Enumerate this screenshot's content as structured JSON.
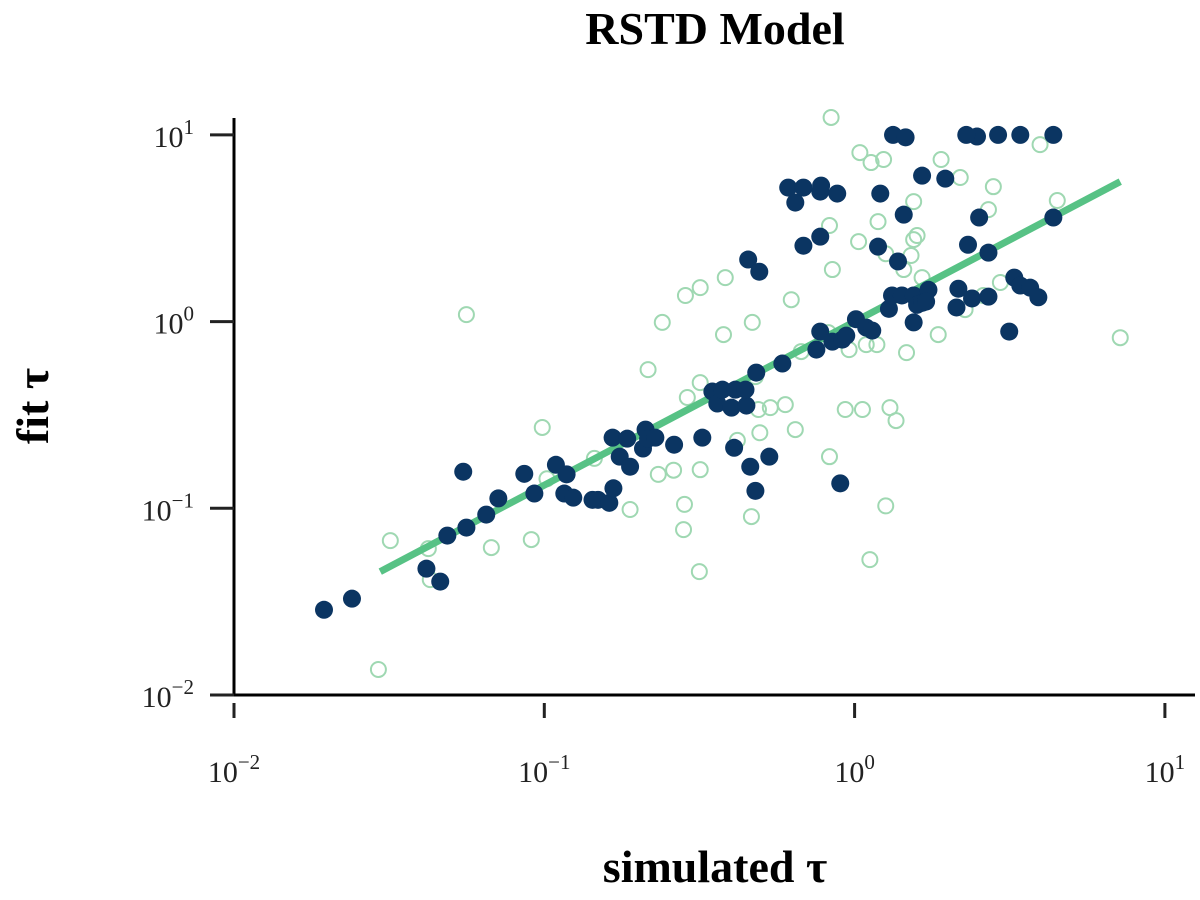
{
  "chart_data": {
    "type": "scatter",
    "title": "RSTD Model",
    "xlabel": "simulated τ",
    "ylabel": "fit τ",
    "xscale": "log",
    "yscale": "log",
    "xlim": [
      0.01,
      12
    ],
    "ylim": [
      0.01,
      12
    ],
    "grid": false,
    "colors": {
      "filled": "#0b3562",
      "open": "#9fd8b2",
      "fit_line": "#57c285",
      "axis": "#222222"
    },
    "x_ticks": [
      {
        "base": "10",
        "exp": "−2",
        "value": 0.01
      },
      {
        "base": "10",
        "exp": "−1",
        "value": 0.1
      },
      {
        "base": "10",
        "exp": "0",
        "value": 1
      },
      {
        "base": "10",
        "exp": "1",
        "value": 10
      }
    ],
    "y_ticks": [
      {
        "base": "10",
        "exp": "−2",
        "value": 0.01
      },
      {
        "base": "10",
        "exp": "−1",
        "value": 0.1
      },
      {
        "base": "10",
        "exp": "0",
        "value": 1
      },
      {
        "base": "10",
        "exp": "1",
        "value": 10
      }
    ],
    "fit_line": {
      "x": [
        0.0296,
        7.18
      ],
      "y": [
        0.0458,
        5.62
      ]
    },
    "series": [
      {
        "marker": "open-circle",
        "points": [
          [
            0.0292,
            0.0137
          ],
          [
            0.0319,
            0.0671
          ],
          [
            0.0423,
            0.0608
          ],
          [
            0.0429,
            0.0415
          ],
          [
            0.0561,
            1.09
          ],
          [
            0.0675,
            0.0616
          ],
          [
            0.0908,
            0.068
          ],
          [
            0.0985,
            0.271
          ],
          [
            0.102,
            0.144
          ],
          [
            0.145,
            0.185
          ],
          [
            0.189,
            0.0985
          ],
          [
            0.216,
            0.553
          ],
          [
            0.233,
            0.152
          ],
          [
            0.24,
            0.99
          ],
          [
            0.261,
            0.16
          ],
          [
            0.281,
            0.0769
          ],
          [
            0.285,
            1.38
          ],
          [
            0.283,
            0.105
          ],
          [
            0.289,
            0.392
          ],
          [
            0.316,
            0.0458
          ],
          [
            0.318,
            1.52
          ],
          [
            0.318,
            0.161
          ],
          [
            0.318,
            0.471
          ],
          [
            0.378,
            0.852
          ],
          [
            0.383,
            1.72
          ],
          [
            0.419,
            0.231
          ],
          [
            0.465,
            0.0903
          ],
          [
            0.468,
            0.99
          ],
          [
            0.479,
            0.507
          ],
          [
            0.49,
            0.338
          ],
          [
            0.535,
            0.346
          ],
          [
            0.495,
            0.254
          ],
          [
            0.598,
            0.359
          ],
          [
            0.625,
            1.31
          ],
          [
            0.644,
            0.264
          ],
          [
            0.673,
            0.691
          ],
          [
            0.823,
            0.873
          ],
          [
            0.83,
            0.189
          ],
          [
            0.848,
            1.9
          ],
          [
            0.83,
            3.27
          ],
          [
            0.84,
            12.4
          ],
          [
            0.933,
            0.338
          ],
          [
            0.96,
            0.708
          ],
          [
            1.03,
            2.68
          ],
          [
            1.04,
            8.04
          ],
          [
            1.09,
            0.753
          ],
          [
            1.13,
            7.11
          ],
          [
            1.12,
            0.0531
          ],
          [
            1.18,
            0.753
          ],
          [
            1.19,
            3.43
          ],
          [
            1.06,
            0.338
          ],
          [
            1.24,
            7.38
          ],
          [
            1.26,
            0.103
          ],
          [
            1.3,
            0.346
          ],
          [
            1.36,
            0.295
          ],
          [
            1.44,
            1.9
          ],
          [
            1.47,
            0.682
          ],
          [
            1.52,
            2.26
          ],
          [
            1.55,
            2.75
          ],
          [
            1.55,
            4.39
          ],
          [
            1.59,
            2.89
          ],
          [
            1.65,
            1.72
          ],
          [
            1.86,
            0.852
          ],
          [
            1.9,
            7.38
          ],
          [
            2.19,
            5.91
          ],
          [
            2.27,
            1.16
          ],
          [
            2.6,
            1.38
          ],
          [
            2.7,
            3.98
          ],
          [
            2.8,
            5.28
          ],
          [
            3.96,
            8.87
          ],
          [
            4.5,
            4.45
          ],
          [
            7.18,
            0.82
          ],
          [
            1.26,
            2.31
          ],
          [
            2.95,
            1.62
          ]
        ]
      },
      {
        "marker": "filled-circle",
        "points": [
          [
            0.0195,
            0.0286
          ],
          [
            0.024,
            0.0328
          ],
          [
            0.0417,
            0.0475
          ],
          [
            0.0462,
            0.0405
          ],
          [
            0.0487,
            0.0714
          ],
          [
            0.0548,
            0.157
          ],
          [
            0.0561,
            0.0788
          ],
          [
            0.065,
            0.0925
          ],
          [
            0.0711,
            0.113
          ],
          [
            0.0862,
            0.153
          ],
          [
            0.0929,
            0.12
          ],
          [
            0.109,
            0.171
          ],
          [
            0.118,
            0.152
          ],
          [
            0.116,
            0.12
          ],
          [
            0.124,
            0.114
          ],
          [
            0.143,
            0.111
          ],
          [
            0.149,
            0.111
          ],
          [
            0.162,
            0.107
          ],
          [
            0.167,
            0.128
          ],
          [
            0.166,
            0.239
          ],
          [
            0.175,
            0.189
          ],
          [
            0.185,
            0.236
          ],
          [
            0.189,
            0.167
          ],
          [
            0.212,
            0.264
          ],
          [
            0.208,
            0.209
          ],
          [
            0.216,
            0.236
          ],
          [
            0.228,
            0.239
          ],
          [
            0.262,
            0.219
          ],
          [
            0.323,
            0.239
          ],
          [
            0.348,
            0.422
          ],
          [
            0.361,
            0.364
          ],
          [
            0.375,
            0.432
          ],
          [
            0.401,
            0.346
          ],
          [
            0.413,
            0.432
          ],
          [
            0.448,
            0.355
          ],
          [
            0.445,
            0.432
          ],
          [
            0.409,
            0.211
          ],
          [
            0.461,
            0.167
          ],
          [
            0.454,
            2.15
          ],
          [
            0.493,
            1.85
          ],
          [
            0.479,
            0.124
          ],
          [
            0.531,
            0.189
          ],
          [
            0.482,
            0.533
          ],
          [
            0.585,
            0.596
          ],
          [
            0.753,
            0.708
          ],
          [
            0.775,
            0.884
          ],
          [
            0.848,
            0.781
          ],
          [
            0.913,
            0.801
          ],
          [
            0.94,
            0.841
          ],
          [
            1.01,
            1.03
          ],
          [
            1.09,
            0.929
          ],
          [
            1.14,
            0.895
          ],
          [
            1.19,
            2.52
          ],
          [
            1.21,
            4.85
          ],
          [
            1.38,
            2.1
          ],
          [
            1.29,
            1.17
          ],
          [
            1.32,
            1.38
          ],
          [
            1.42,
            1.38
          ],
          [
            1.44,
            3.74
          ],
          [
            1.55,
            1.38
          ],
          [
            1.59,
            1.23
          ],
          [
            1.55,
            0.99
          ],
          [
            1.65,
            1.26
          ],
          [
            1.73,
            1.48
          ],
          [
            1.7,
            1.28
          ],
          [
            1.65,
            6.05
          ],
          [
            1.96,
            5.83
          ],
          [
            2.13,
            1.19
          ],
          [
            2.16,
            1.5
          ],
          [
            2.32,
            2.58
          ],
          [
            2.39,
            1.33
          ],
          [
            2.52,
            3.61
          ],
          [
            2.7,
            1.36
          ],
          [
            2.7,
            2.34
          ],
          [
            3.27,
            1.72
          ],
          [
            3.42,
            1.56
          ],
          [
            3.68,
            1.52
          ],
          [
            3.91,
            1.35
          ],
          [
            3.15,
            0.884
          ],
          [
            4.37,
            3.61
          ],
          [
            4.37,
            10
          ],
          [
            3.42,
            10
          ],
          [
            2.9,
            10
          ],
          [
            2.48,
            9.8
          ],
          [
            2.29,
            10
          ],
          [
            1.33,
            10
          ],
          [
            1.46,
            9.7
          ],
          [
            0.611,
            5.22
          ],
          [
            0.644,
            4.34
          ],
          [
            0.684,
            5.22
          ],
          [
            0.775,
            4.97
          ],
          [
            0.78,
            5.35
          ],
          [
            0.879,
            4.85
          ],
          [
            0.684,
            2.55
          ],
          [
            0.775,
            2.85
          ],
          [
            0.899,
            0.136
          ]
        ]
      }
    ]
  }
}
